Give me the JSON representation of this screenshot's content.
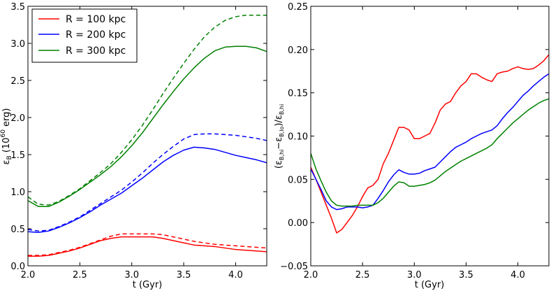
{
  "chart_data": [
    {
      "type": "line",
      "title": "",
      "xlabel": "t (Gyr)",
      "ylabel": "ε_B (10^60 erg)",
      "ylabel_parts": {
        "sym": "ε",
        "sub": "B",
        "unit_open": "(10",
        "unit_exp": "60",
        "unit_close": "erg)"
      },
      "xlim": [
        2.0,
        4.3
      ],
      "ylim": [
        0.0,
        3.5
      ],
      "xticks": [
        2.0,
        2.5,
        3.0,
        3.5,
        4.0
      ],
      "xtick_labels": [
        "2.0",
        "2.5",
        "3.0",
        "3.5",
        "4.0"
      ],
      "yticks": [
        0.0,
        0.5,
        1.0,
        1.5,
        2.0,
        2.5,
        3.0,
        3.5
      ],
      "ytick_labels": [
        "0.0",
        "0.5",
        "1.0",
        "1.5",
        "2.0",
        "2.5",
        "3.0",
        "3.5"
      ],
      "legend": {
        "placement": "top-left",
        "entries": [
          {
            "label": "R = 100 kpc",
            "color": "#ff0000"
          },
          {
            "label": "R = 200 kpc",
            "color": "#0000ff"
          },
          {
            "label": "R = 300 kpc",
            "color": "#008000"
          }
        ]
      },
      "series": [
        {
          "name": "R = 100 kpc (solid)",
          "color": "#ff0000",
          "style": "solid",
          "x": [
            2.0,
            2.1,
            2.2,
            2.3,
            2.4,
            2.5,
            2.6,
            2.7,
            2.8,
            2.9,
            3.0,
            3.1,
            3.2,
            3.3,
            3.4,
            3.5,
            3.6,
            3.7,
            3.8,
            3.9,
            4.0,
            4.1,
            4.2,
            4.3
          ],
          "y": [
            0.13,
            0.13,
            0.14,
            0.17,
            0.2,
            0.24,
            0.29,
            0.34,
            0.37,
            0.39,
            0.39,
            0.39,
            0.39,
            0.37,
            0.34,
            0.31,
            0.28,
            0.27,
            0.26,
            0.24,
            0.22,
            0.21,
            0.2,
            0.19
          ]
        },
        {
          "name": "R = 100 kpc (dashed)",
          "color": "#ff0000",
          "style": "dashed",
          "x": [
            2.0,
            2.1,
            2.2,
            2.3,
            2.4,
            2.5,
            2.6,
            2.7,
            2.8,
            2.9,
            3.0,
            3.1,
            3.2,
            3.3,
            3.4,
            3.5,
            3.6,
            3.7,
            3.8,
            3.9,
            4.0,
            4.1,
            4.2,
            4.3
          ],
          "y": [
            0.14,
            0.14,
            0.15,
            0.18,
            0.21,
            0.25,
            0.3,
            0.35,
            0.4,
            0.43,
            0.43,
            0.43,
            0.43,
            0.42,
            0.39,
            0.36,
            0.33,
            0.31,
            0.29,
            0.28,
            0.27,
            0.26,
            0.25,
            0.24
          ]
        },
        {
          "name": "R = 200 kpc (solid)",
          "color": "#0000ff",
          "style": "solid",
          "x": [
            2.0,
            2.1,
            2.2,
            2.3,
            2.4,
            2.5,
            2.6,
            2.7,
            2.8,
            2.9,
            3.0,
            3.1,
            3.2,
            3.3,
            3.4,
            3.5,
            3.6,
            3.7,
            3.8,
            3.9,
            4.0,
            4.1,
            4.2,
            4.3
          ],
          "y": [
            0.46,
            0.45,
            0.47,
            0.52,
            0.58,
            0.65,
            0.73,
            0.82,
            0.9,
            0.98,
            1.08,
            1.18,
            1.29,
            1.4,
            1.49,
            1.56,
            1.6,
            1.59,
            1.57,
            1.53,
            1.49,
            1.46,
            1.43,
            1.39
          ]
        },
        {
          "name": "R = 200 kpc (dashed)",
          "color": "#0000ff",
          "style": "dashed",
          "x": [
            2.0,
            2.1,
            2.2,
            2.3,
            2.4,
            2.5,
            2.6,
            2.7,
            2.8,
            2.9,
            3.0,
            3.1,
            3.2,
            3.3,
            3.4,
            3.5,
            3.6,
            3.7,
            3.8,
            3.9,
            4.0,
            4.1,
            4.2,
            4.3
          ],
          "y": [
            0.49,
            0.47,
            0.48,
            0.53,
            0.59,
            0.66,
            0.75,
            0.84,
            0.93,
            1.02,
            1.13,
            1.25,
            1.38,
            1.5,
            1.61,
            1.71,
            1.77,
            1.78,
            1.78,
            1.77,
            1.76,
            1.74,
            1.72,
            1.69
          ]
        },
        {
          "name": "R = 300 kpc (solid)",
          "color": "#008000",
          "style": "solid",
          "x": [
            2.0,
            2.1,
            2.2,
            2.3,
            2.4,
            2.5,
            2.6,
            2.7,
            2.8,
            2.9,
            3.0,
            3.1,
            3.2,
            3.3,
            3.4,
            3.5,
            3.6,
            3.7,
            3.8,
            3.9,
            4.0,
            4.1,
            4.2,
            4.3
          ],
          "y": [
            0.88,
            0.8,
            0.8,
            0.86,
            0.94,
            1.03,
            1.13,
            1.23,
            1.34,
            1.47,
            1.62,
            1.79,
            1.98,
            2.17,
            2.35,
            2.52,
            2.67,
            2.8,
            2.9,
            2.95,
            2.96,
            2.96,
            2.94,
            2.89
          ]
        },
        {
          "name": "R = 300 kpc (dashed)",
          "color": "#008000",
          "style": "dashed",
          "x": [
            2.0,
            2.1,
            2.2,
            2.3,
            2.4,
            2.5,
            2.6,
            2.7,
            2.8,
            2.9,
            3.0,
            3.1,
            3.2,
            3.3,
            3.4,
            3.5,
            3.6,
            3.7,
            3.8,
            3.9,
            4.0,
            4.1,
            4.2,
            4.3
          ],
          "y": [
            0.93,
            0.83,
            0.82,
            0.87,
            0.95,
            1.04,
            1.15,
            1.26,
            1.38,
            1.53,
            1.7,
            1.89,
            2.1,
            2.32,
            2.53,
            2.73,
            2.92,
            3.09,
            3.22,
            3.31,
            3.36,
            3.38,
            3.38,
            3.38
          ]
        }
      ]
    },
    {
      "type": "line",
      "title": "",
      "xlabel": "t (Gyr)",
      "ylabel": "(ε_B,hi − ε_B,lo)/ε_B,hi",
      "ylabel_parts": {
        "open": "(",
        "sym": "ε",
        "sub_hi": "B,hi",
        "minus": "−",
        "sub_lo": "B,lo",
        "close": ")/"
      },
      "xlim": [
        2.0,
        4.3
      ],
      "ylim": [
        -0.05,
        0.25
      ],
      "xticks": [
        2.0,
        2.5,
        3.0,
        3.5,
        4.0
      ],
      "xtick_labels": [
        "2.0",
        "2.5",
        "3.0",
        "3.5",
        "4.0"
      ],
      "yticks": [
        -0.05,
        0.0,
        0.05,
        0.1,
        0.15,
        0.2,
        0.25
      ],
      "ytick_labels": [
        "−0.05",
        "0.00",
        "0.05",
        "0.10",
        "0.15",
        "0.20",
        "0.25"
      ],
      "series": [
        {
          "name": "R = 100 kpc",
          "color": "#ff0000",
          "style": "solid",
          "x": [
            2.0,
            2.05,
            2.1,
            2.15,
            2.2,
            2.25,
            2.3,
            2.35,
            2.4,
            2.45,
            2.5,
            2.55,
            2.6,
            2.65,
            2.7,
            2.75,
            2.8,
            2.85,
            2.9,
            2.95,
            3.0,
            3.05,
            3.1,
            3.15,
            3.2,
            3.25,
            3.3,
            3.35,
            3.4,
            3.45,
            3.5,
            3.55,
            3.6,
            3.65,
            3.7,
            3.75,
            3.8,
            3.85,
            3.9,
            3.95,
            4.0,
            4.05,
            4.1,
            4.15,
            4.2,
            4.25,
            4.3
          ],
          "y": [
            0.064,
            0.05,
            0.035,
            0.02,
            0.005,
            -0.012,
            -0.008,
            0.0,
            0.008,
            0.018,
            0.03,
            0.04,
            0.043,
            0.05,
            0.068,
            0.08,
            0.095,
            0.11,
            0.11,
            0.107,
            0.097,
            0.097,
            0.1,
            0.103,
            0.115,
            0.13,
            0.137,
            0.14,
            0.15,
            0.158,
            0.163,
            0.172,
            0.172,
            0.168,
            0.165,
            0.163,
            0.172,
            0.174,
            0.175,
            0.178,
            0.18,
            0.178,
            0.177,
            0.178,
            0.182,
            0.187,
            0.194
          ]
        },
        {
          "name": "R = 200 kpc",
          "color": "#0000ff",
          "style": "solid",
          "x": [
            2.0,
            2.05,
            2.1,
            2.15,
            2.2,
            2.25,
            2.3,
            2.35,
            2.4,
            2.45,
            2.5,
            2.55,
            2.6,
            2.65,
            2.7,
            2.75,
            2.8,
            2.85,
            2.9,
            2.95,
            3.0,
            3.05,
            3.1,
            3.15,
            3.2,
            3.25,
            3.3,
            3.35,
            3.4,
            3.45,
            3.5,
            3.55,
            3.6,
            3.65,
            3.7,
            3.75,
            3.8,
            3.85,
            3.9,
            3.95,
            4.0,
            4.05,
            4.1,
            4.15,
            4.2,
            4.25,
            4.3
          ],
          "y": [
            0.062,
            0.05,
            0.038,
            0.025,
            0.018,
            0.015,
            0.016,
            0.018,
            0.018,
            0.018,
            0.017,
            0.018,
            0.02,
            0.028,
            0.037,
            0.047,
            0.055,
            0.061,
            0.058,
            0.056,
            0.056,
            0.057,
            0.06,
            0.062,
            0.064,
            0.07,
            0.076,
            0.082,
            0.087,
            0.09,
            0.093,
            0.097,
            0.1,
            0.103,
            0.105,
            0.107,
            0.112,
            0.12,
            0.127,
            0.133,
            0.14,
            0.147,
            0.152,
            0.158,
            0.163,
            0.168,
            0.172
          ]
        },
        {
          "name": "R = 300 kpc",
          "color": "#008000",
          "style": "solid",
          "x": [
            2.0,
            2.05,
            2.1,
            2.15,
            2.2,
            2.25,
            2.3,
            2.35,
            2.4,
            2.45,
            2.5,
            2.55,
            2.6,
            2.65,
            2.7,
            2.75,
            2.8,
            2.85,
            2.9,
            2.95,
            3.0,
            3.05,
            3.1,
            3.15,
            3.2,
            3.25,
            3.3,
            3.35,
            3.4,
            3.45,
            3.5,
            3.55,
            3.6,
            3.65,
            3.7,
            3.75,
            3.8,
            3.85,
            3.9,
            3.95,
            4.0,
            4.05,
            4.1,
            4.15,
            4.2,
            4.25,
            4.3
          ],
          "y": [
            0.08,
            0.062,
            0.048,
            0.035,
            0.025,
            0.02,
            0.019,
            0.019,
            0.019,
            0.02,
            0.02,
            0.02,
            0.02,
            0.023,
            0.028,
            0.035,
            0.042,
            0.047,
            0.046,
            0.042,
            0.042,
            0.043,
            0.044,
            0.046,
            0.049,
            0.054,
            0.059,
            0.063,
            0.067,
            0.071,
            0.074,
            0.077,
            0.08,
            0.083,
            0.086,
            0.09,
            0.097,
            0.103,
            0.109,
            0.115,
            0.12,
            0.125,
            0.13,
            0.134,
            0.138,
            0.141,
            0.143
          ]
        }
      ]
    }
  ]
}
